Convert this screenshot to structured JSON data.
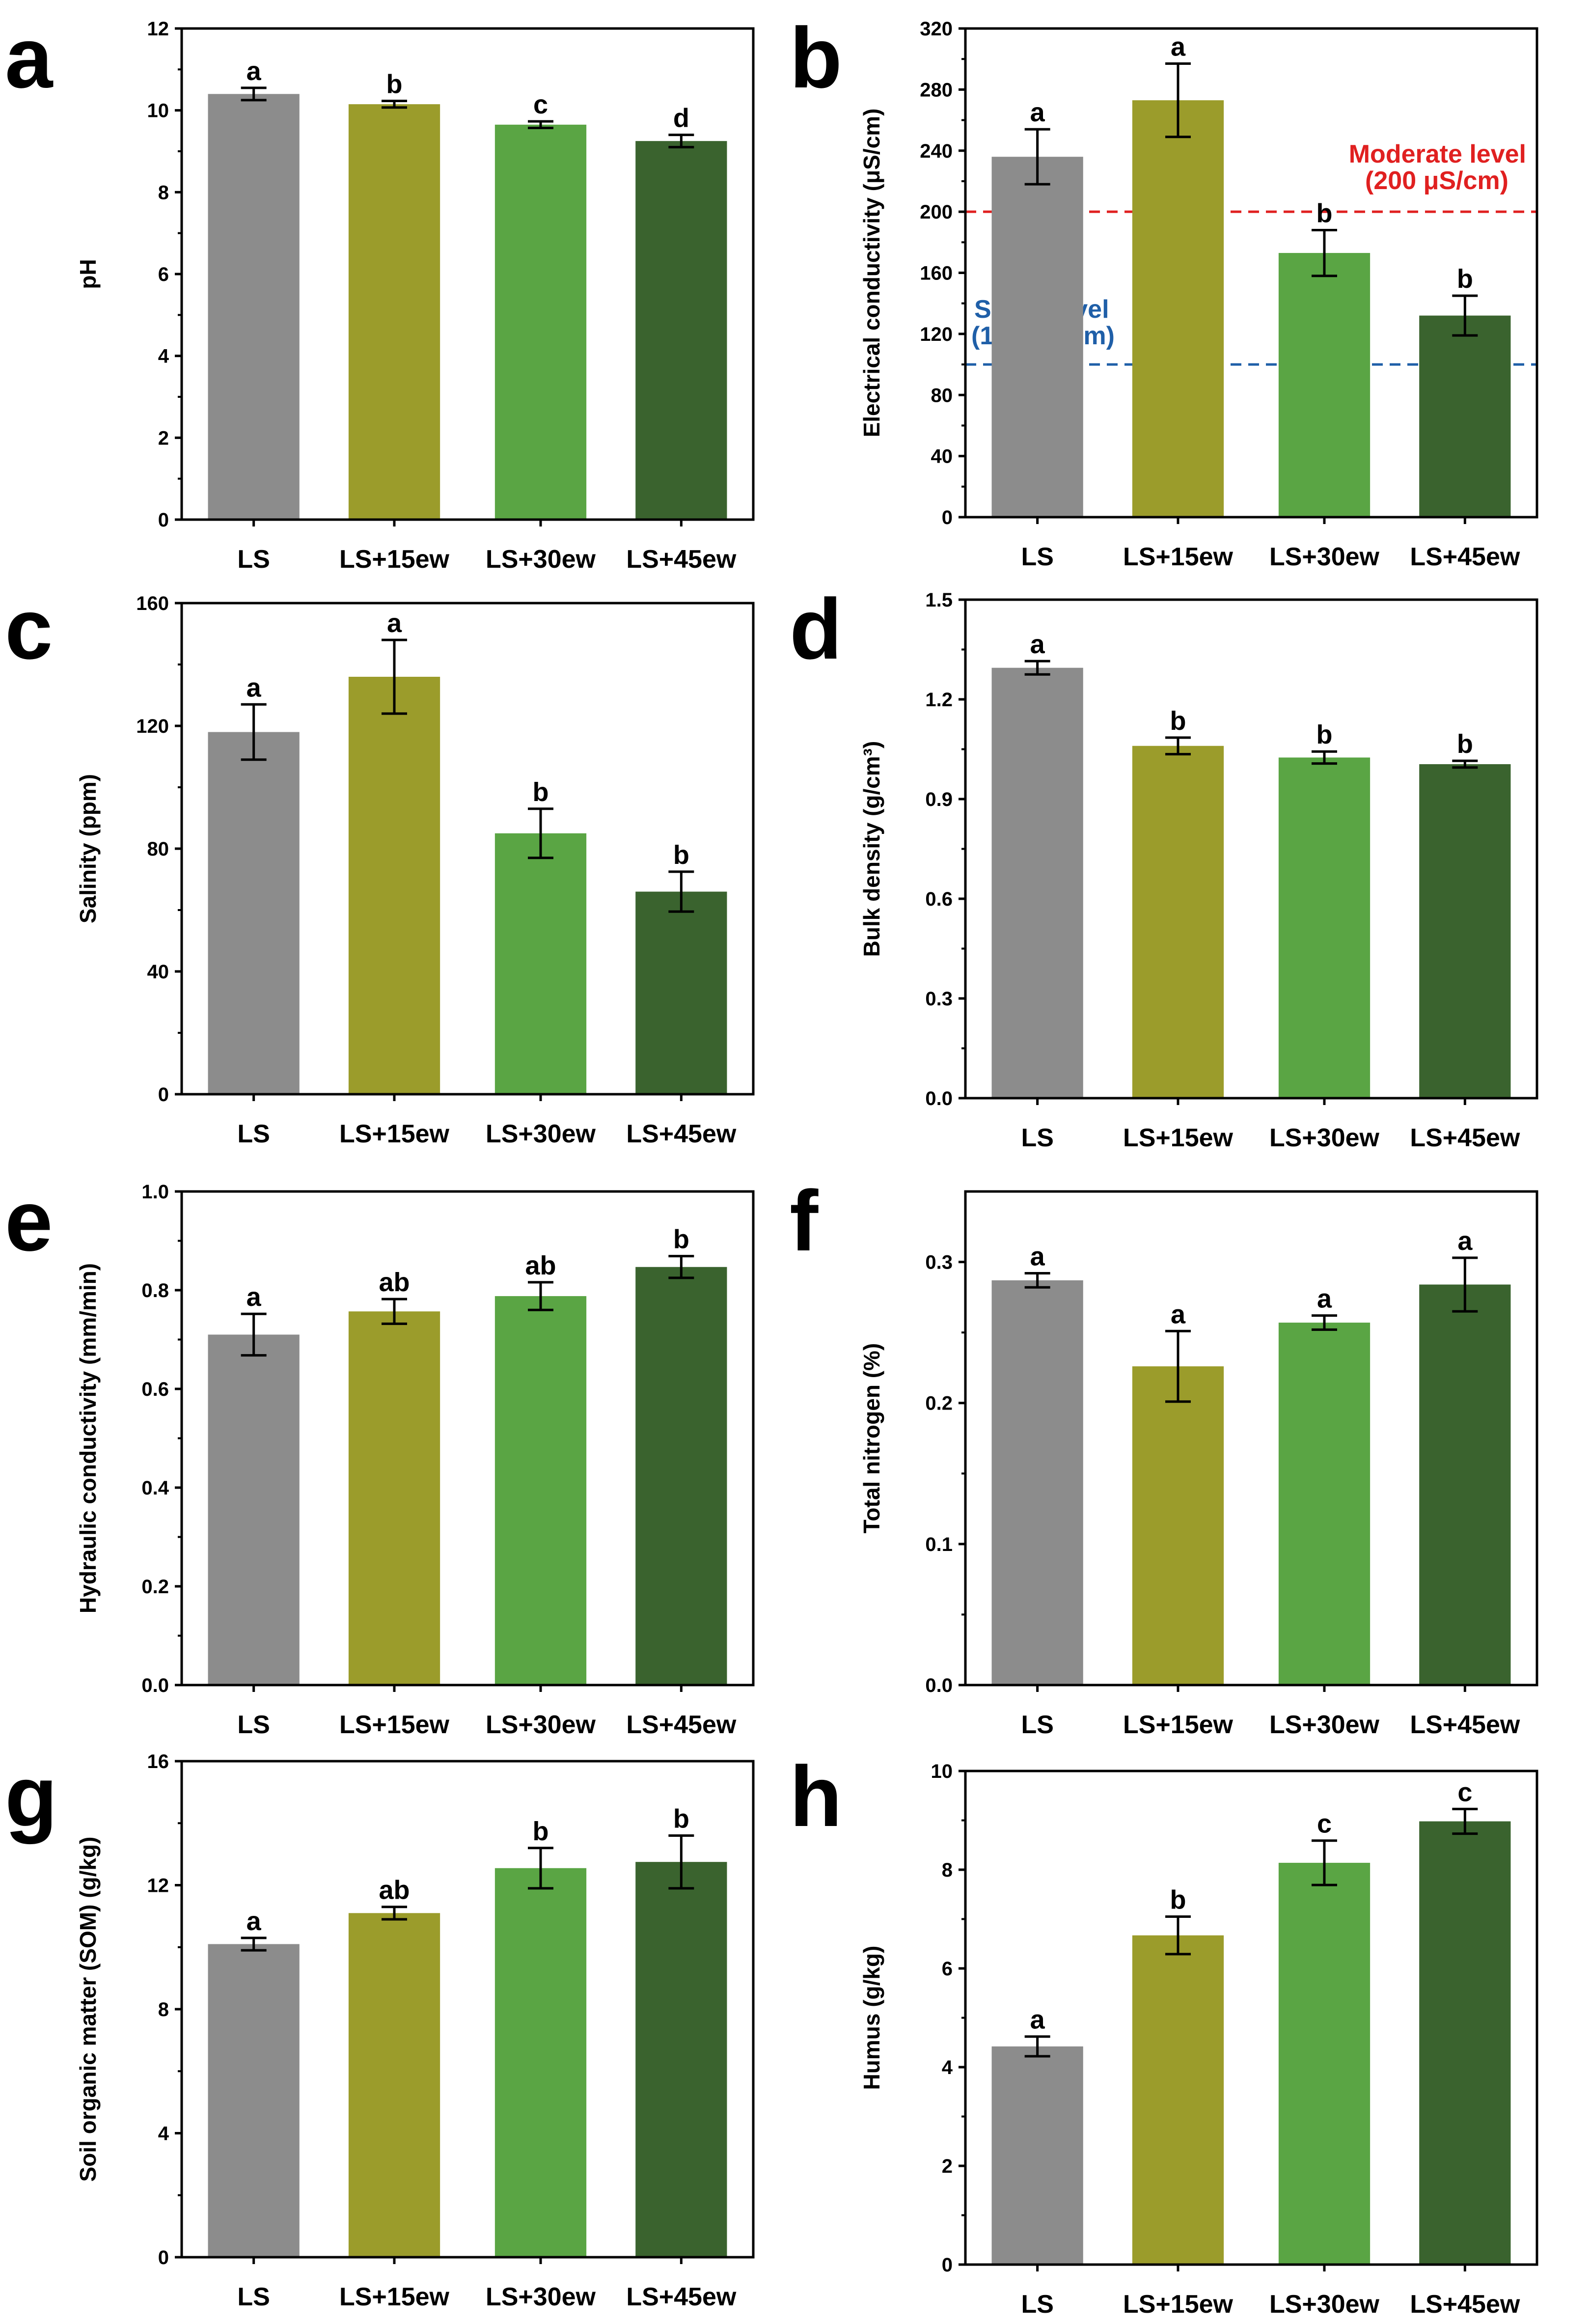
{
  "chart_data": [
    {
      "id": "a",
      "type": "bar",
      "panel_label": "a",
      "categories": [
        "LS",
        "LS+15ew",
        "LS+30ew",
        "LS+45ew"
      ],
      "values": [
        10.4,
        10.15,
        9.65,
        9.25
      ],
      "errors": [
        0.15,
        0.08,
        0.08,
        0.15
      ],
      "significance": [
        "a",
        "b",
        "c",
        "d"
      ],
      "ylabel": "pH",
      "ylim": [
        0,
        12
      ],
      "yticks": [
        "0",
        "2",
        "4",
        "6",
        "8",
        "10",
        "12"
      ],
      "references": []
    },
    {
      "id": "b",
      "type": "bar",
      "panel_label": "b",
      "categories": [
        "LS",
        "LS+15ew",
        "LS+30ew",
        "LS+45ew"
      ],
      "values": [
        236,
        273,
        173,
        132
      ],
      "errors": [
        18,
        24,
        15,
        13
      ],
      "significance": [
        "a",
        "a",
        "b",
        "b"
      ],
      "ylabel": "Electrical conductivity (μS/cm)",
      "ylim": [
        0,
        320
      ],
      "yticks": [
        "0",
        "40",
        "80",
        "120",
        "160",
        "200",
        "240",
        "280",
        "320"
      ],
      "references": [
        {
          "value": 200,
          "color": "#e02020",
          "text_lines": [
            "Moderate level",
            "(200 μS/cm)"
          ],
          "align": "end"
        },
        {
          "value": 100,
          "color": "#1f5fa8",
          "text_lines": [
            "Slight level",
            "(100 μS/cm)"
          ],
          "align": "start"
        }
      ]
    },
    {
      "id": "c",
      "type": "bar",
      "panel_label": "c",
      "categories": [
        "LS",
        "LS+15ew",
        "LS+30ew",
        "LS+45ew"
      ],
      "values": [
        118,
        136,
        85,
        66
      ],
      "errors": [
        9,
        12,
        8,
        6.5
      ],
      "significance": [
        "a",
        "a",
        "b",
        "b"
      ],
      "ylabel": "Salinity (ppm)",
      "ylim": [
        0,
        160
      ],
      "yticks": [
        "0",
        "40",
        "80",
        "120",
        "160"
      ],
      "references": []
    },
    {
      "id": "d",
      "type": "bar",
      "panel_label": "d",
      "categories": [
        "LS",
        "LS+15ew",
        "LS+30ew",
        "LS+45ew"
      ],
      "values": [
        1.295,
        1.06,
        1.025,
        1.005
      ],
      "errors": [
        0.02,
        0.025,
        0.018,
        0.01
      ],
      "significance": [
        "a",
        "b",
        "b",
        "b"
      ],
      "ylabel": "Bulk density (g/cm³)",
      "ylim": [
        0,
        1.5
      ],
      "yticks": [
        "0.0",
        "0.3",
        "0.6",
        "0.9",
        "1.2",
        "1.5"
      ],
      "references": []
    },
    {
      "id": "e",
      "type": "bar",
      "panel_label": "e",
      "categories": [
        "LS",
        "LS+15ew",
        "LS+30ew",
        "LS+45ew"
      ],
      "values": [
        0.71,
        0.757,
        0.788,
        0.847
      ],
      "errors": [
        0.042,
        0.025,
        0.028,
        0.022
      ],
      "significance": [
        "a",
        "ab",
        "ab",
        "b"
      ],
      "ylabel": "Hydraulic conductivity (mm/min)",
      "ylim": [
        0,
        1.0
      ],
      "yticks": [
        "0.0",
        "0.2",
        "0.4",
        "0.6",
        "0.8",
        "1.0"
      ],
      "references": []
    },
    {
      "id": "f",
      "type": "bar",
      "panel_label": "f",
      "categories": [
        "LS",
        "LS+15ew",
        "LS+30ew",
        "LS+45ew"
      ],
      "values": [
        0.287,
        0.226,
        0.257,
        0.284
      ],
      "errors": [
        0.005,
        0.025,
        0.005,
        0.019
      ],
      "significance": [
        "a",
        "a",
        "a",
        "a"
      ],
      "ylabel": "Total nitrogen (%)",
      "ylim": [
        0,
        0.35
      ],
      "yticks": [
        "0.0",
        "0.1",
        "0.2",
        "0.3"
      ],
      "references": []
    },
    {
      "id": "g",
      "type": "bar",
      "panel_label": "g",
      "categories": [
        "LS",
        "LS+15ew",
        "LS+30ew",
        "LS+45ew"
      ],
      "values": [
        10.1,
        11.1,
        12.55,
        12.75
      ],
      "errors": [
        0.2,
        0.2,
        0.65,
        0.85
      ],
      "significance": [
        "a",
        "ab",
        "b",
        "b"
      ],
      "ylabel": "Soil organic matter (SOM) (g/kg)",
      "ylim": [
        0,
        16
      ],
      "yticks": [
        "0",
        "4",
        "8",
        "12",
        "16"
      ],
      "references": []
    },
    {
      "id": "h",
      "type": "bar",
      "panel_label": "h",
      "categories": [
        "LS",
        "LS+15ew",
        "LS+30ew",
        "LS+45ew"
      ],
      "values": [
        4.42,
        6.67,
        8.14,
        8.98
      ],
      "errors": [
        0.2,
        0.38,
        0.45,
        0.25
      ],
      "significance": [
        "a",
        "b",
        "c",
        "c"
      ],
      "ylabel": "Humus (g/kg)",
      "ylim": [
        0,
        10
      ],
      "yticks": [
        "0",
        "2",
        "4",
        "6",
        "8",
        "10"
      ],
      "references": []
    }
  ],
  "colors": {
    "bars": [
      "#8c8c8c",
      "#9b9c2b",
      "#5aa544",
      "#3a632e"
    ],
    "axis": "#000000"
  }
}
